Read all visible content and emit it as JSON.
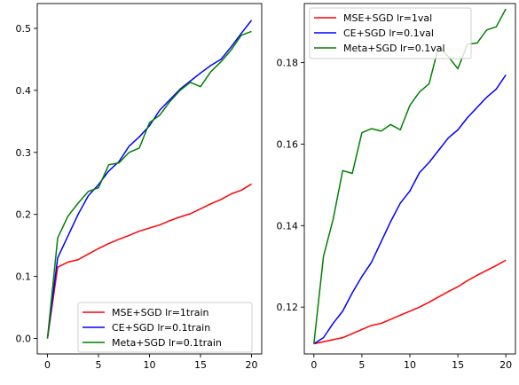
{
  "chart_data": [
    {
      "type": "line",
      "xlim": [
        -1,
        21
      ],
      "ylim": [
        -0.025,
        0.54
      ],
      "xticks": [
        0,
        5,
        10,
        15,
        20
      ],
      "xtick_labels": [
        "0",
        "5",
        "10",
        "15",
        "20"
      ],
      "yticks": [
        0.0,
        0.1,
        0.2,
        0.3,
        0.4,
        0.5
      ],
      "ytick_labels": [
        "0.0",
        "0.1",
        "0.2",
        "0.3",
        "0.4",
        "0.5"
      ],
      "grid": false,
      "legend_position": "lower-right",
      "x": [
        0,
        1,
        2,
        3,
        4,
        5,
        6,
        7,
        8,
        9,
        10,
        11,
        12,
        13,
        14,
        15,
        16,
        17,
        18,
        19,
        20
      ],
      "series": [
        {
          "name": "MSE+SGD lr=1train",
          "color": "#ff0000",
          "values": [
            0.0,
            0.115,
            0.123,
            0.127,
            0.136,
            0.145,
            0.153,
            0.16,
            0.166,
            0.173,
            0.178,
            0.183,
            0.19,
            0.196,
            0.201,
            0.209,
            0.217,
            0.224,
            0.233,
            0.239,
            0.249
          ]
        },
        {
          "name": "CE+SGD lr=0.1train",
          "color": "#0000ff",
          "values": [
            0.0,
            0.13,
            0.165,
            0.2,
            0.23,
            0.248,
            0.27,
            0.285,
            0.31,
            0.325,
            0.343,
            0.368,
            0.385,
            0.402,
            0.415,
            0.428,
            0.44,
            0.45,
            0.47,
            0.492,
            0.513
          ]
        },
        {
          "name": "Meta+SGD lr=0.1train",
          "color": "#008000",
          "values": [
            0.0,
            0.162,
            0.197,
            0.218,
            0.237,
            0.243,
            0.28,
            0.283,
            0.3,
            0.307,
            0.348,
            0.36,
            0.382,
            0.4,
            0.413,
            0.406,
            0.43,
            0.446,
            0.465,
            0.489,
            0.495
          ]
        }
      ]
    },
    {
      "type": "line",
      "xlim": [
        -1,
        21
      ],
      "ylim": [
        0.1085,
        0.1945
      ],
      "xticks": [
        0,
        5,
        10,
        15,
        20
      ],
      "xtick_labels": [
        "0",
        "5",
        "10",
        "15",
        "20"
      ],
      "yticks": [
        0.12,
        0.14,
        0.16,
        0.18
      ],
      "ytick_labels": [
        "0.12",
        "0.14",
        "0.16",
        "0.18"
      ],
      "grid": false,
      "legend_position": "upper-left",
      "x": [
        0,
        1,
        2,
        3,
        4,
        5,
        6,
        7,
        8,
        9,
        10,
        11,
        12,
        13,
        14,
        15,
        16,
        17,
        18,
        19,
        20
      ],
      "series": [
        {
          "name": "MSE+SGD lr=1val",
          "color": "#ff0000",
          "values": [
            0.111,
            0.1115,
            0.112,
            0.1125,
            0.1135,
            0.1145,
            0.1155,
            0.116,
            0.117,
            0.118,
            0.119,
            0.12,
            0.1212,
            0.1225,
            0.1238,
            0.125,
            0.1265,
            0.1278,
            0.129,
            0.1302,
            0.1315
          ]
        },
        {
          "name": "CE+SGD lr=0.1val",
          "color": "#0000ff",
          "values": [
            0.111,
            0.1125,
            0.116,
            0.119,
            0.1235,
            0.1275,
            0.131,
            0.136,
            0.141,
            0.1455,
            0.1485,
            0.153,
            0.1555,
            0.1585,
            0.1615,
            0.1635,
            0.1665,
            0.169,
            0.1715,
            0.1735,
            0.177
          ]
        },
        {
          "name": "Meta+SGD lr=0.1val",
          "color": "#008000",
          "values": [
            0.111,
            0.1325,
            0.1415,
            0.1535,
            0.1528,
            0.1628,
            0.1638,
            0.1632,
            0.1648,
            0.1635,
            0.1695,
            0.1728,
            0.1748,
            0.184,
            0.1815,
            0.1785,
            0.1845,
            0.1848,
            0.188,
            0.1888,
            0.1932
          ]
        }
      ]
    }
  ]
}
